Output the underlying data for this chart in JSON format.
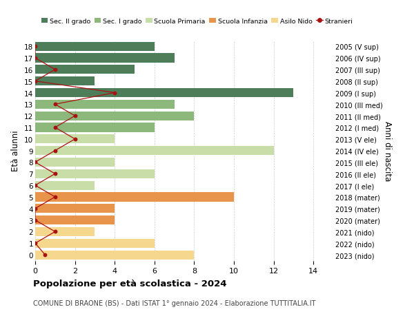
{
  "ages": [
    0,
    1,
    2,
    3,
    4,
    5,
    6,
    7,
    8,
    9,
    10,
    11,
    12,
    13,
    14,
    15,
    16,
    17,
    18
  ],
  "right_labels": [
    "2023 (nido)",
    "2022 (nido)",
    "2021 (nido)",
    "2020 (mater)",
    "2019 (mater)",
    "2018 (mater)",
    "2017 (I ele)",
    "2016 (II ele)",
    "2015 (III ele)",
    "2014 (IV ele)",
    "2013 (V ele)",
    "2012 (I med)",
    "2011 (II med)",
    "2010 (III med)",
    "2009 (I sup)",
    "2008 (II sup)",
    "2007 (III sup)",
    "2006 (IV sup)",
    "2005 (V sup)"
  ],
  "bar_values": [
    8,
    6,
    3,
    4,
    4,
    10,
    3,
    6,
    4,
    12,
    4,
    6,
    8,
    7,
    13,
    3,
    5,
    7,
    6
  ],
  "bar_colors": [
    "#f5d88e",
    "#f5d88e",
    "#f5d88e",
    "#e8944a",
    "#e8944a",
    "#e8944a",
    "#c9dda8",
    "#c9dda8",
    "#c9dda8",
    "#c9dda8",
    "#c9dda8",
    "#8db87c",
    "#8db87c",
    "#8db87c",
    "#4d7d59",
    "#4d7d59",
    "#4d7d59",
    "#4d7d59",
    "#4d7d59"
  ],
  "stranieri_values": [
    0.5,
    0,
    1,
    0,
    0,
    1,
    0,
    1,
    0,
    1,
    2,
    1,
    2,
    1,
    4,
    0,
    1,
    0,
    0
  ],
  "stranieri_color": "#aa1111",
  "title": "Popolazione per età scolastica - 2024",
  "subtitle": "COMUNE DI BRAONE (BS) - Dati ISTAT 1° gennaio 2024 - Elaborazione TUTTITALIA.IT",
  "ylabel": "Età alunni",
  "right_ylabel": "Anni di nascita",
  "xlim": [
    0,
    15
  ],
  "xticks": [
    0,
    2,
    4,
    6,
    8,
    10,
    12,
    14
  ],
  "legend_labels": [
    "Sec. II grado",
    "Sec. I grado",
    "Scuola Primaria",
    "Scuola Infanzia",
    "Asilo Nido",
    "Stranieri"
  ],
  "legend_colors": [
    "#4d7d59",
    "#8db87c",
    "#c9dda8",
    "#e8944a",
    "#f5d88e",
    "#aa1111"
  ],
  "bg_color": "#ffffff",
  "grid_color": "#cccccc"
}
